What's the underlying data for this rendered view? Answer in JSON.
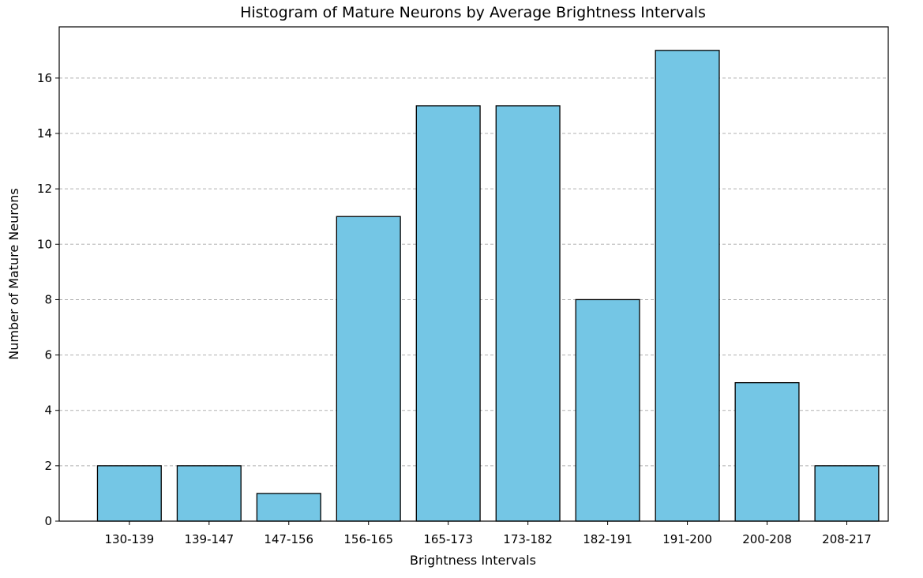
{
  "chart_data": {
    "type": "bar",
    "title": "Histogram of Mature Neurons by Average Brightness Intervals",
    "xlabel": "Brightness Intervals",
    "ylabel": "Number of Mature Neurons",
    "categories": [
      "130-139",
      "139-147",
      "147-156",
      "156-165",
      "165-173",
      "173-182",
      "182-191",
      "191-200",
      "200-208",
      "208-217"
    ],
    "values": [
      2,
      2,
      1,
      11,
      15,
      15,
      8,
      17,
      5,
      2
    ],
    "ylim": [
      0,
      17.85
    ],
    "yticks": [
      0,
      2,
      4,
      6,
      8,
      10,
      12,
      14,
      16
    ],
    "grid": "y-dashed",
    "legend": "none",
    "bar_color": "#74c6e5",
    "bar_edge_color": "#000000",
    "grid_color": "#b0b0b0"
  }
}
